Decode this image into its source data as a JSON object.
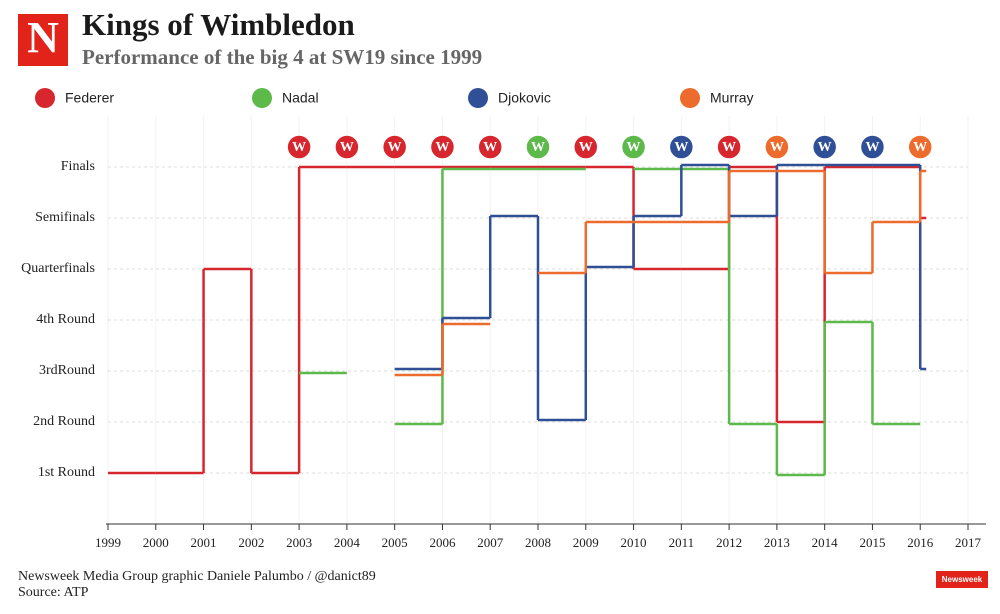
{
  "chart_data": {
    "type": "step",
    "logo": "N",
    "title": "Kings of Wimbledon",
    "subtitle": "Performance of the big 4 at SW19 since 1999",
    "x": [
      1999,
      2000,
      2001,
      2002,
      2003,
      2004,
      2005,
      2006,
      2007,
      2008,
      2009,
      2010,
      2011,
      2012,
      2013,
      2014,
      2015,
      2016
    ],
    "series": [
      {
        "name": "Federer",
        "color": "#d7262e",
        "values": [
          1,
          1,
          5,
          1,
          7,
          7,
          7,
          7,
          7,
          7,
          7,
          5,
          5,
          7,
          2,
          7,
          7,
          6
        ]
      },
      {
        "name": "Nadal",
        "color": "#5cb94a",
        "values": [
          null,
          null,
          null,
          null,
          3,
          null,
          2,
          7,
          7,
          7,
          null,
          7,
          7,
          2,
          1,
          4,
          2,
          null
        ]
      },
      {
        "name": "Djokovic",
        "color": "#2f4f96",
        "values": [
          null,
          null,
          null,
          null,
          null,
          null,
          3,
          4,
          6,
          2,
          5,
          6,
          7,
          6,
          7,
          7,
          7,
          3
        ]
      },
      {
        "name": "Murray",
        "color": "#ec6b2d",
        "values": [
          null,
          null,
          null,
          null,
          null,
          null,
          3,
          4,
          null,
          5,
          6,
          6,
          6,
          7,
          7,
          5,
          6,
          7
        ]
      }
    ],
    "winners": {
      "text": "W",
      "x": [
        2003,
        2004,
        2005,
        2006,
        2007,
        2008,
        2009,
        2010,
        2011,
        2012,
        2013,
        2014,
        2015,
        2016
      ],
      "series": [
        "Federer",
        "Federer",
        "Federer",
        "Federer",
        "Federer",
        "Nadal",
        "Federer",
        "Nadal",
        "Djokovic",
        "Federer",
        "Murray",
        "Djokovic",
        "Djokovic",
        "Murray"
      ]
    },
    "xlim": [
      1999,
      2017
    ],
    "xticks": [
      1999,
      2000,
      2001,
      2002,
      2003,
      2004,
      2005,
      2006,
      2007,
      2008,
      2009,
      2010,
      2011,
      2012,
      2013,
      2014,
      2015,
      2016,
      2017
    ],
    "ylim": [
      0,
      8
    ],
    "yticks": [
      {
        "value": 1,
        "label": "1st Round"
      },
      {
        "value": 2,
        "label": "2nd Round"
      },
      {
        "value": 3,
        "label": "3rdRound"
      },
      {
        "value": 4,
        "label": "4th Round"
      },
      {
        "value": 5,
        "label": "Quarterfinals"
      },
      {
        "value": 6,
        "label": "Semifinals"
      },
      {
        "value": 7,
        "label": "Finals"
      }
    ],
    "grid": true,
    "credit": "Newsweek Media Group graphic Daniele Palumbo / @danict89",
    "source": "Source: ATP",
    "badge": "Newsweek"
  }
}
